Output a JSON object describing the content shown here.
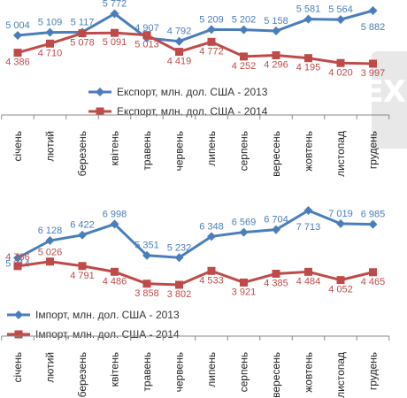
{
  "chart_data": [
    {
      "type": "line",
      "categories": [
        "січень",
        "лютий",
        "березень",
        "квітень",
        "травень",
        "червень",
        "липень",
        "серпень",
        "вересень",
        "жовтень",
        "листопад",
        "грудень"
      ],
      "series": [
        {
          "name": "Експорт, млн. дол. США - 2013",
          "values": [
            5004,
            5109,
            5117,
            5772,
            4907,
            4792,
            5209,
            5202,
            5158,
            5581,
            5564,
            5882
          ],
          "labels": [
            "5 004",
            "5 109",
            "5 117",
            "5 772",
            "4 907",
            "4 792",
            "5 209",
            "5 202",
            "5 158",
            "5 581",
            "5 564",
            "5 882"
          ],
          "color": "#4a7ebb",
          "marker": "diamond"
        },
        {
          "name": "Експорт, млн. дол. США - 2014",
          "values": [
            4386,
            4710,
            5078,
            5091,
            5013,
            4419,
            4772,
            4252,
            4296,
            4195,
            4020,
            3997
          ],
          "labels": [
            "4 386",
            "4 710",
            "5 078",
            "5 091",
            "5 013",
            "4 419",
            "4 772",
            "4 252",
            "4 296",
            "4 195",
            "4 020",
            "3 997"
          ],
          "color": "#be4b48",
          "marker": "square"
        }
      ],
      "legend_position": "bottom",
      "grid": false
    },
    {
      "type": "line",
      "categories": [
        "січень",
        "лютий",
        "березень",
        "квітень",
        "травень",
        "червень",
        "липень",
        "серпень",
        "вересень",
        "жовтень",
        "листопад",
        "грудень"
      ],
      "series": [
        {
          "name": "Імпорт, млн. дол. США - 2013",
          "values": [
            5214,
            6128,
            6422,
            6998,
            5351,
            5232,
            6348,
            6569,
            6704,
            7713,
            7019,
            6985
          ],
          "labels": [
            "5 214",
            "6 128",
            "6 422",
            "6 998",
            "5 351",
            "5 232",
            "6 348",
            "6 569",
            "6 704",
            "7 713",
            "7 019",
            "6 985"
          ],
          "color": "#4a7ebb",
          "marker": "diamond"
        },
        {
          "name": "Імпорт, млн. дол. США - 2014",
          "values": [
            4786,
            5026,
            4791,
            4486,
            3858,
            3802,
            4533,
            3921,
            4385,
            4484,
            4052,
            4465
          ],
          "labels": [
            "4 786",
            "5 026",
            "4 791",
            "4 486",
            "3 858",
            "3 802",
            "4 533",
            "3 921",
            "4 385",
            "4 484",
            "4 052",
            "4 465"
          ],
          "color": "#be4b48",
          "marker": "square"
        }
      ],
      "legend_position": "bottom",
      "grid": false
    }
  ]
}
